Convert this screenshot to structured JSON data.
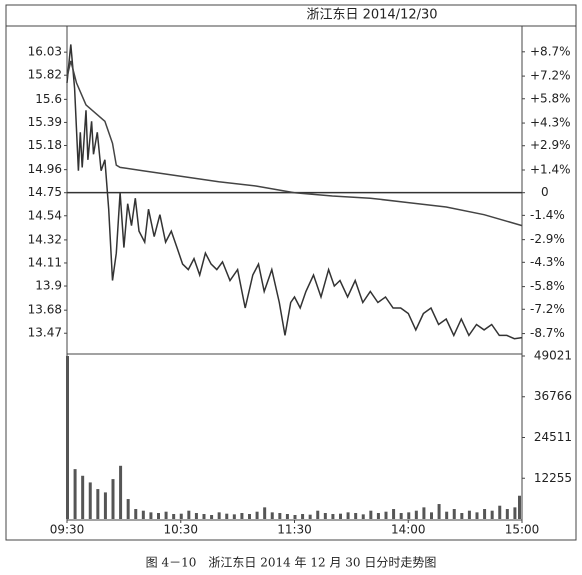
{
  "caption": "图 4－10　浙江东日 2014 年 12 月 30 日分时走势图",
  "chart_data": [
    {
      "type": "line",
      "title": "浙江东日 2014/12/30",
      "xlim": [
        0,
        240
      ],
      "ylim": [
        13.29,
        16.25
      ],
      "yticks": [
        16.03,
        15.82,
        15.6,
        15.39,
        15.18,
        14.96,
        14.75,
        14.54,
        14.32,
        14.11,
        13.9,
        13.68,
        13.47
      ],
      "y2lim": [
        -9.9,
        10.17
      ],
      "y2ticks": [
        {
          "value": 8.7,
          "label": "+8.7%"
        },
        {
          "value": 7.2,
          "label": "+7.2%"
        },
        {
          "value": 5.8,
          "label": "+5.8%"
        },
        {
          "value": 4.3,
          "label": "+4.3%"
        },
        {
          "value": 2.9,
          "label": "+2.9%"
        },
        {
          "value": 1.4,
          "label": "+1.4%"
        },
        0,
        {
          "value": -1.4,
          "label": "-1.4%"
        },
        {
          "value": -2.9,
          "label": "-2.9%"
        },
        {
          "value": -4.3,
          "label": "-4.3%"
        },
        {
          "value": -5.8,
          "label": "-5.8%"
        },
        {
          "value": -7.2,
          "label": "-7.2%"
        },
        {
          "value": -8.7,
          "label": "-8.7%"
        }
      ],
      "series": [
        {
          "name": "price",
          "color": "#333333",
          "x": [
            0,
            2,
            4,
            6,
            7,
            8,
            10,
            11,
            13,
            14,
            16,
            18,
            20,
            22,
            24,
            26,
            28,
            30,
            32,
            34,
            36,
            38,
            41,
            43,
            46,
            49,
            52,
            55,
            58,
            61,
            64,
            67,
            70,
            73,
            76,
            79,
            82,
            86,
            90,
            94,
            98,
            101,
            104,
            108,
            112,
            115,
            118,
            120,
            123,
            126,
            130,
            134,
            138,
            141,
            144,
            148,
            152,
            156,
            160,
            164,
            168,
            172,
            176,
            180,
            184,
            188,
            192,
            196,
            200,
            204,
            208,
            212,
            216,
            220,
            224,
            228,
            232,
            236,
            240
          ],
          "values": [
            15.75,
            16.1,
            15.7,
            14.95,
            15.3,
            14.98,
            15.5,
            15.05,
            15.4,
            15.1,
            15.3,
            14.95,
            15.05,
            14.6,
            13.95,
            14.2,
            14.75,
            14.25,
            14.65,
            14.45,
            14.7,
            14.4,
            14.3,
            14.6,
            14.35,
            14.55,
            14.3,
            14.4,
            14.25,
            14.1,
            14.05,
            14.15,
            14.0,
            14.2,
            14.1,
            14.05,
            14.12,
            13.95,
            14.05,
            13.7,
            14.0,
            14.1,
            13.85,
            14.05,
            13.75,
            13.45,
            13.75,
            13.8,
            13.7,
            13.85,
            14.0,
            13.8,
            14.05,
            13.9,
            13.95,
            13.8,
            13.95,
            13.75,
            13.85,
            13.75,
            13.8,
            13.7,
            13.7,
            13.65,
            13.5,
            13.65,
            13.7,
            13.55,
            13.6,
            13.45,
            13.6,
            13.45,
            13.55,
            13.5,
            13.55,
            13.45,
            13.45,
            13.42,
            13.43
          ]
        },
        {
          "name": "average",
          "color": "#444444",
          "x": [
            0,
            2,
            5,
            10,
            20,
            24,
            26,
            28,
            40,
            60,
            80,
            100,
            120,
            140,
            160,
            180,
            200,
            220,
            240
          ],
          "values": [
            15.8,
            15.95,
            15.75,
            15.55,
            15.4,
            15.2,
            15.0,
            14.98,
            14.95,
            14.9,
            14.85,
            14.81,
            14.75,
            14.72,
            14.7,
            14.66,
            14.62,
            14.55,
            14.45
          ]
        }
      ]
    },
    {
      "type": "bar",
      "xlim": [
        0,
        240
      ],
      "ylim": [
        0,
        49021
      ],
      "yticks": [
        49021,
        36766,
        24511,
        12255
      ],
      "xticks": [
        {
          "value": 0,
          "label": "09:30"
        },
        {
          "value": 60,
          "label": "10:30"
        },
        {
          "value": 120,
          "label": "11:30"
        },
        {
          "value": 180,
          "label": "14:00"
        },
        {
          "value": 240,
          "label": "15:00"
        }
      ],
      "color": "#555555",
      "x": [
        0,
        4,
        8,
        12,
        16,
        20,
        24,
        28,
        32,
        36,
        40,
        44,
        48,
        52,
        56,
        60,
        64,
        68,
        72,
        76,
        80,
        84,
        88,
        92,
        96,
        100,
        104,
        108,
        112,
        116,
        120,
        124,
        128,
        132,
        136,
        140,
        144,
        148,
        152,
        156,
        160,
        164,
        168,
        172,
        176,
        180,
        184,
        188,
        192,
        196,
        200,
        204,
        208,
        212,
        216,
        220,
        224,
        228,
        232,
        236,
        240
      ],
      "values": [
        49021,
        15000,
        13000,
        11000,
        9000,
        8000,
        12000,
        16000,
        6000,
        3000,
        2500,
        2000,
        1800,
        2200,
        1500,
        1600,
        2500,
        1800,
        1500,
        1200,
        2000,
        1600,
        1400,
        1800,
        1500,
        2200,
        3500,
        2000,
        1800,
        1500,
        1200,
        1500,
        1300,
        2500,
        1800,
        1500,
        1600,
        2000,
        1800,
        1400,
        2500,
        1800,
        2200,
        3000,
        1800,
        2000,
        2500,
        3500,
        2000,
        4500,
        2200,
        3000,
        1800,
        2500,
        2000,
        3000,
        2500,
        4000,
        3000,
        3500,
        7000
      ]
    }
  ]
}
